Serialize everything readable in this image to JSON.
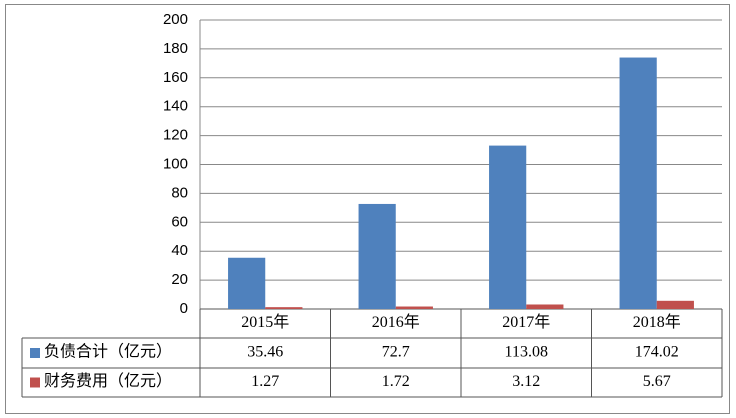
{
  "chart_data": {
    "type": "bar",
    "categories": [
      "2015年",
      "2016年",
      "2017年",
      "2018年"
    ],
    "series": [
      {
        "name": "负债合计（亿元）",
        "color": "#4f81bd",
        "values": [
          35.46,
          72.7,
          113.08,
          174.02
        ]
      },
      {
        "name": "财务费用（亿元）",
        "color": "#c0504d",
        "values": [
          1.27,
          1.72,
          3.12,
          5.67
        ]
      }
    ],
    "ylim": [
      0,
      200
    ],
    "yticks": [
      0,
      20,
      40,
      60,
      80,
      100,
      120,
      140,
      160,
      180,
      200
    ],
    "grid": true
  }
}
